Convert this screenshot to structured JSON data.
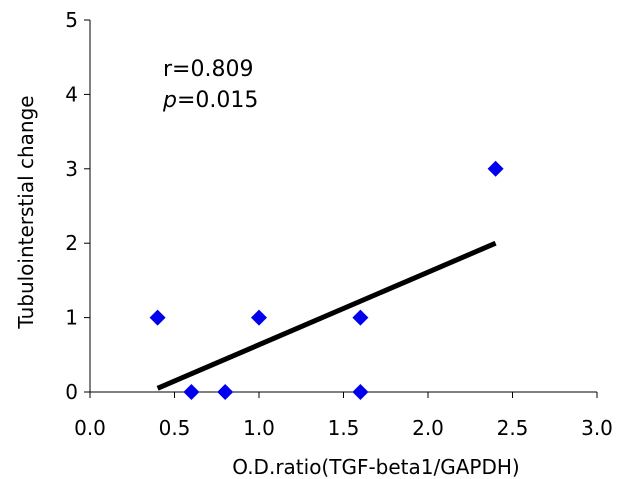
{
  "chart_data": {
    "type": "scatter",
    "title": "",
    "xlabel": "O.D.ratio(TGF-beta1/GAPDH)",
    "ylabel": "Tubulointerstial change",
    "xlim": [
      0.0,
      3.0
    ],
    "ylim": [
      0,
      5
    ],
    "x_ticks": [
      "0.0",
      "0.5",
      "1.0",
      "1.5",
      "2.0",
      "2.5",
      "3.0"
    ],
    "y_ticks": [
      "0",
      "1",
      "2",
      "3",
      "4",
      "5"
    ],
    "grid": false,
    "legend": "none",
    "marker": "diamond",
    "marker_color": "#0000ee",
    "line_color": "#000000",
    "points": [
      {
        "x": 0.4,
        "y": 1
      },
      {
        "x": 0.6,
        "y": 0
      },
      {
        "x": 0.8,
        "y": 0
      },
      {
        "x": 1.0,
        "y": 1
      },
      {
        "x": 1.6,
        "y": 1
      },
      {
        "x": 1.6,
        "y": 0
      },
      {
        "x": 2.4,
        "y": 3
      }
    ],
    "trendline": {
      "x": [
        0.4,
        2.4
      ],
      "y": [
        0.05,
        2.0
      ]
    },
    "annotations": {
      "r_label": "r=0.809",
      "p_letter": "p",
      "p_value": "=0.015"
    }
  }
}
